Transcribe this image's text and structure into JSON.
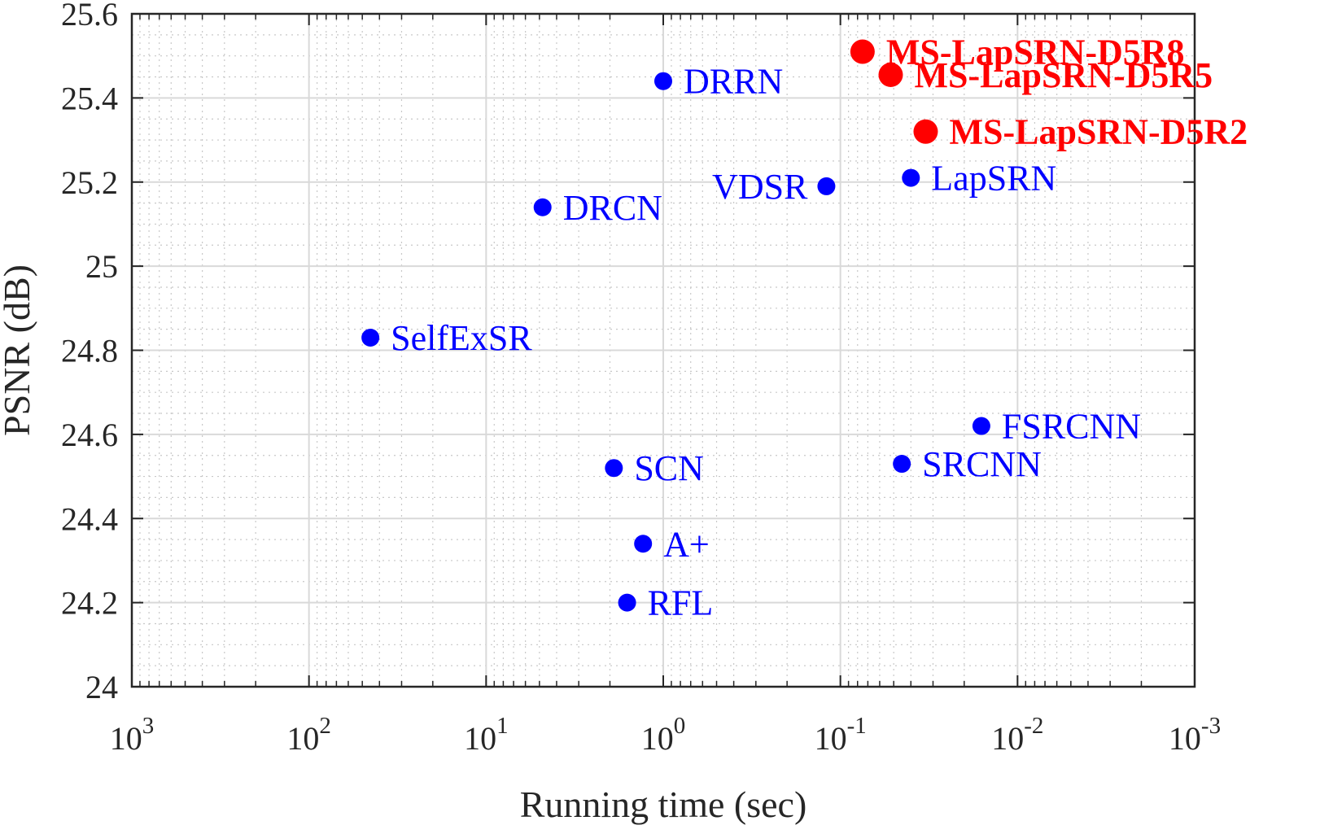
{
  "chart_data": {
    "type": "scatter",
    "title": "",
    "xlabel": "Running time (sec)",
    "ylabel": "PSNR (dB)",
    "x_scale": "log",
    "x_reversed": true,
    "xlim": [
      1000,
      0.001
    ],
    "ylim": [
      24.0,
      25.6
    ],
    "grid": true,
    "minor_grid": true,
    "x_ticks": [
      {
        "value": 1000,
        "base": "10",
        "exp": "3"
      },
      {
        "value": 100,
        "base": "10",
        "exp": "2"
      },
      {
        "value": 10,
        "base": "10",
        "exp": "1"
      },
      {
        "value": 1,
        "base": "10",
        "exp": "0"
      },
      {
        "value": 0.1,
        "base": "10",
        "exp": "-1"
      },
      {
        "value": 0.01,
        "base": "10",
        "exp": "-2"
      },
      {
        "value": 0.001,
        "base": "10",
        "exp": "-3"
      }
    ],
    "y_ticks": [
      "24",
      "24.2",
      "24.4",
      "24.6",
      "24.8",
      "25",
      "25.2",
      "25.4",
      "25.6"
    ],
    "colors": {
      "baseline": "#0000ff",
      "proposed": "#ff0000"
    },
    "points": [
      {
        "label": "SelfExSR",
        "x": 45,
        "y": 24.83,
        "group": "baseline"
      },
      {
        "label": "DRCN",
        "x": 4.8,
        "y": 25.14,
        "group": "baseline"
      },
      {
        "label": "DRRN",
        "x": 1.0,
        "y": 25.44,
        "group": "baseline"
      },
      {
        "label": "SCN",
        "x": 1.9,
        "y": 24.52,
        "group": "baseline"
      },
      {
        "label": "A+",
        "x": 1.3,
        "y": 24.34,
        "group": "baseline"
      },
      {
        "label": "RFL",
        "x": 1.6,
        "y": 24.2,
        "group": "baseline"
      },
      {
        "label": "VDSR",
        "x": 0.12,
        "y": 25.19,
        "group": "baseline"
      },
      {
        "label": "LapSRN",
        "x": 0.04,
        "y": 25.21,
        "group": "baseline"
      },
      {
        "label": "FSRCNN",
        "x": 0.016,
        "y": 24.62,
        "group": "baseline"
      },
      {
        "label": "SRCNN",
        "x": 0.045,
        "y": 24.53,
        "group": "baseline"
      },
      {
        "label": "MS-LapSRN-D5R8",
        "x": 0.075,
        "y": 25.51,
        "group": "proposed"
      },
      {
        "label": "MS-LapSRN-D5R5",
        "x": 0.052,
        "y": 25.455,
        "group": "proposed"
      },
      {
        "label": "MS-LapSRN-D5R2",
        "x": 0.033,
        "y": 25.32,
        "group": "proposed"
      }
    ]
  }
}
